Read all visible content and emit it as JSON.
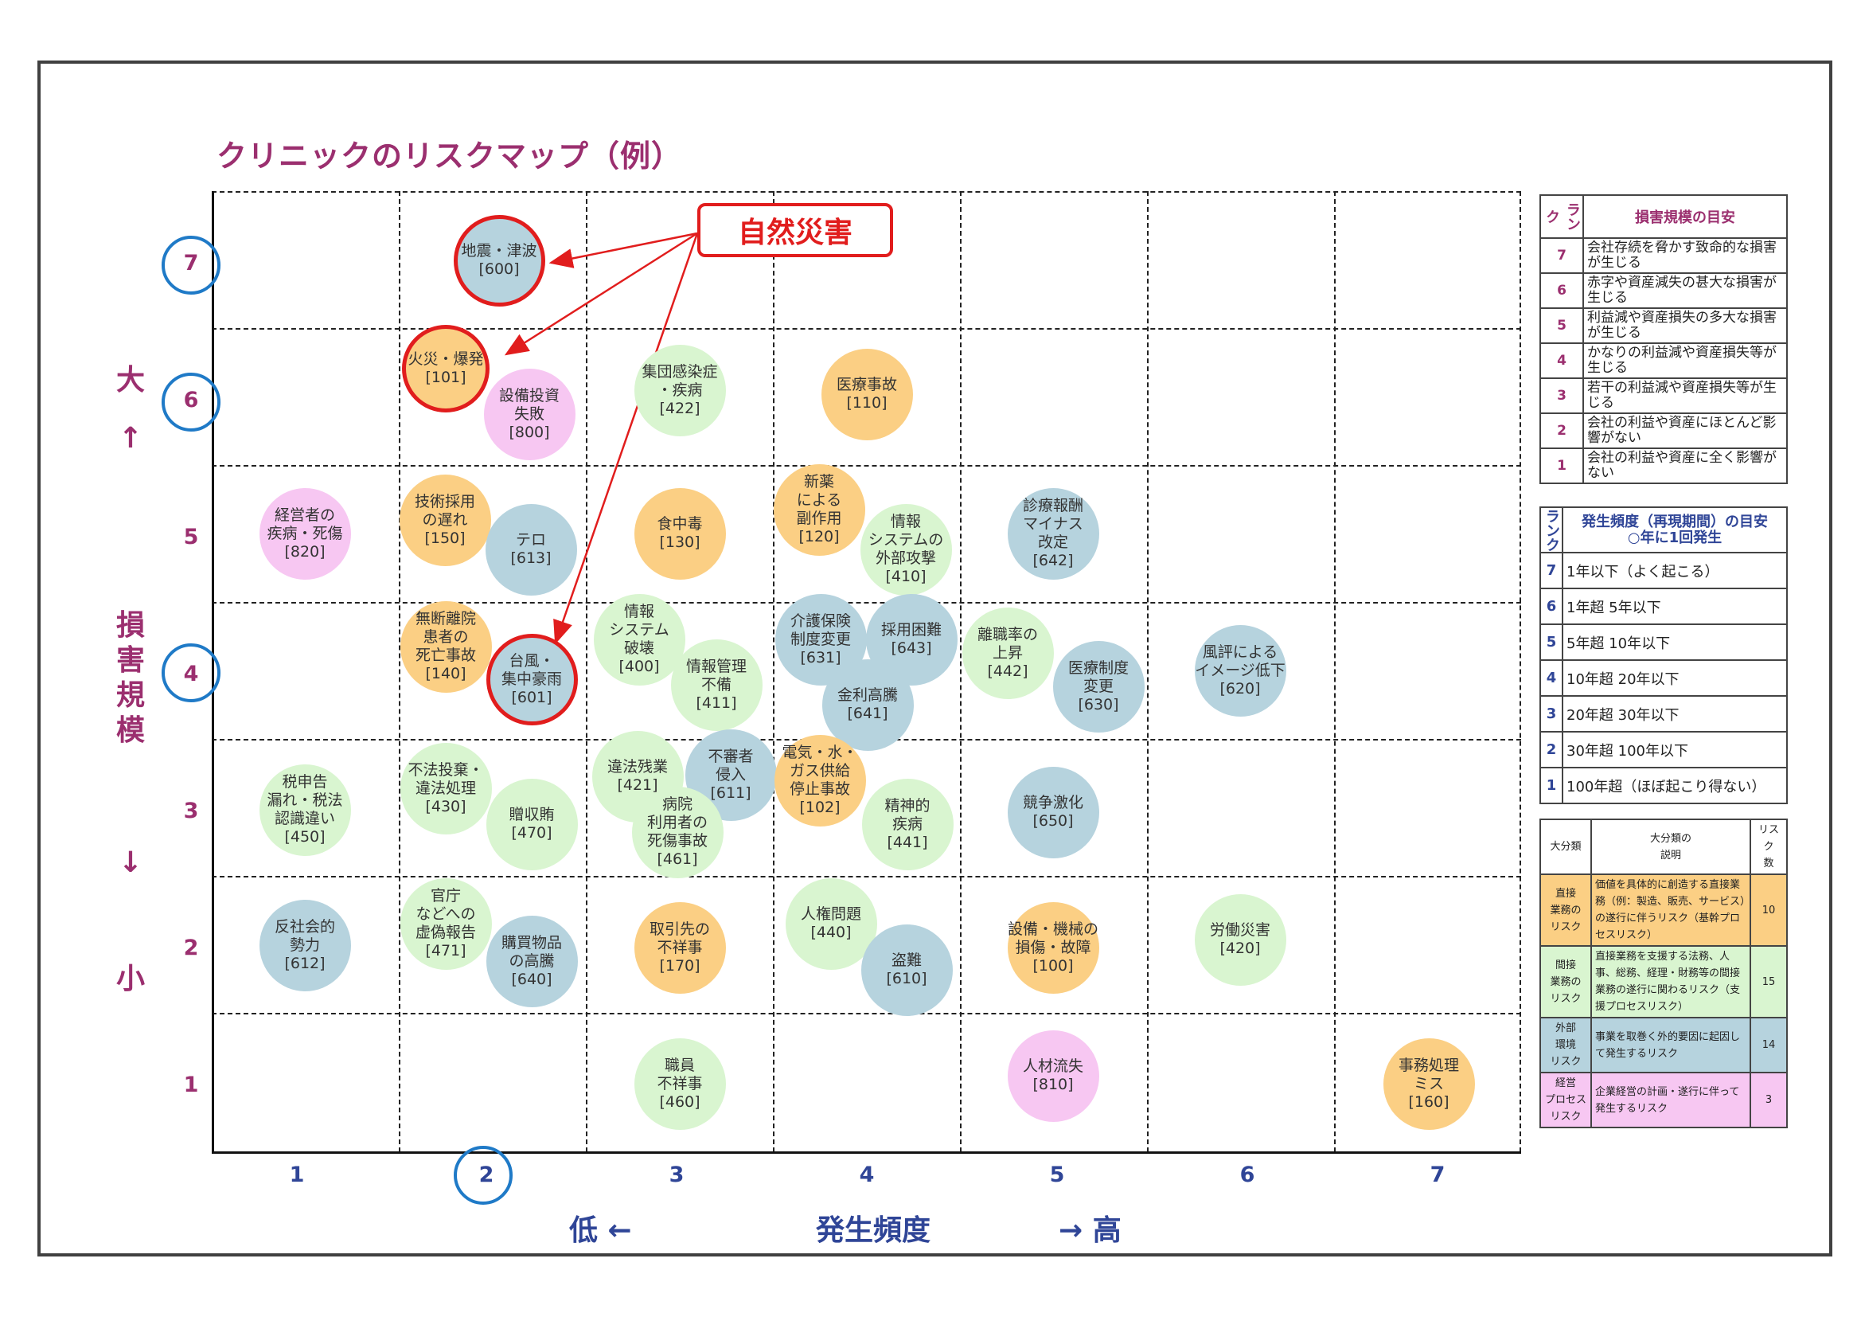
{
  "title": "クリニックのリスクマップ（例）",
  "callout": "自然災害",
  "y_axis": {
    "title_top": "大",
    "up_arrow": "↑",
    "title_chars": [
      "損",
      "害",
      "規",
      "模"
    ],
    "down_arrow": "↓",
    "title_bottom": "小",
    "ticks": [
      "1",
      "2",
      "3",
      "4",
      "5",
      "6",
      "7"
    ],
    "circled_ticks": [
      "7",
      "6",
      "4"
    ]
  },
  "x_axis": {
    "ticks": [
      "1",
      "2",
      "3",
      "4",
      "5",
      "6",
      "7"
    ],
    "circled_ticks": [
      "2"
    ],
    "low": "低 ←",
    "title": "発生頻度",
    "high": "→ 高"
  },
  "colors": {
    "direct": "#fbcf84",
    "indirect": "#d9f5d0",
    "external": "#b6d3de",
    "management": "#f7c7f2",
    "highlight": "#e11d1d",
    "title": "#9b2f6f",
    "axis": "#2f4597"
  },
  "risks": [
    {
      "label": "地震・津波",
      "code": "[600]",
      "frequency": 2,
      "severity": 7,
      "category": "external",
      "highlight": true
    },
    {
      "label": "火災・爆発",
      "code": "[101]",
      "frequency": 2,
      "severity": 6,
      "category": "direct",
      "highlight": true
    },
    {
      "label": "設備投資\n失敗",
      "code": "[800]",
      "frequency": 2,
      "severity": 6,
      "category": "management"
    },
    {
      "label": "集団感染症\n・疾病",
      "code": "[422]",
      "frequency": 3,
      "severity": 6,
      "category": "indirect"
    },
    {
      "label": "医療事故",
      "code": "[110]",
      "frequency": 4,
      "severity": 6,
      "category": "direct"
    },
    {
      "label": "経営者の\n疾病・死傷",
      "code": "[820]",
      "frequency": 1,
      "severity": 5,
      "category": "management"
    },
    {
      "label": "技術採用\nの遅れ",
      "code": "[150]",
      "frequency": 2,
      "severity": 5,
      "category": "direct"
    },
    {
      "label": "テロ",
      "code": "[613]",
      "frequency": 2,
      "severity": 5,
      "category": "external"
    },
    {
      "label": "食中毒",
      "code": "[130]",
      "frequency": 3,
      "severity": 5,
      "category": "direct"
    },
    {
      "label": "新薬\nによる\n副作用",
      "code": "[120]",
      "frequency": 4,
      "severity": 5,
      "category": "direct"
    },
    {
      "label": "情報\nシステムの\n外部攻撃",
      "code": "[410]",
      "frequency": 4,
      "severity": 5,
      "category": "indirect"
    },
    {
      "label": "診療報酬\nマイナス\n改定",
      "code": "[642]",
      "frequency": 5,
      "severity": 5,
      "category": "external"
    },
    {
      "label": "無断離院\n患者の\n死亡事故",
      "code": "[140]",
      "frequency": 2,
      "severity": 4,
      "category": "direct"
    },
    {
      "label": "台風・\n集中豪雨",
      "code": "[601]",
      "frequency": 2,
      "severity": 4,
      "category": "external",
      "highlight": true
    },
    {
      "label": "情報\nシステム\n破壊",
      "code": "[400]",
      "frequency": 3,
      "severity": 4,
      "category": "indirect"
    },
    {
      "label": "情報管理\n不備",
      "code": "[411]",
      "frequency": 3,
      "severity": 4,
      "category": "indirect"
    },
    {
      "label": "介護保険\n制度変更",
      "code": "[631]",
      "frequency": 4,
      "severity": 4,
      "category": "external"
    },
    {
      "label": "採用困難",
      "code": "[643]",
      "frequency": 4,
      "severity": 4,
      "category": "external"
    },
    {
      "label": "金利高騰",
      "code": "[641]",
      "frequency": 4,
      "severity": 4,
      "category": "external"
    },
    {
      "label": "離職率の\n上昇",
      "code": "[442]",
      "frequency": 5,
      "severity": 4,
      "category": "indirect"
    },
    {
      "label": "医療制度\n変更",
      "code": "[630]",
      "frequency": 5,
      "severity": 4,
      "category": "external"
    },
    {
      "label": "風評による\nイメージ低下",
      "code": "[620]",
      "frequency": 6,
      "severity": 4,
      "category": "external"
    },
    {
      "label": "税申告\n漏れ・税法\n認識違い",
      "code": "[450]",
      "frequency": 1,
      "severity": 3,
      "category": "indirect"
    },
    {
      "label": "不法投棄・\n違法処理",
      "code": "[430]",
      "frequency": 2,
      "severity": 3,
      "category": "indirect"
    },
    {
      "label": "贈収賄",
      "code": "[470]",
      "frequency": 2,
      "severity": 3,
      "category": "indirect"
    },
    {
      "label": "違法残業",
      "code": "[421]",
      "frequency": 3,
      "severity": 3,
      "category": "indirect"
    },
    {
      "label": "不審者\n侵入",
      "code": "[611]",
      "frequency": 3,
      "severity": 3,
      "category": "external"
    },
    {
      "label": "病院\n利用者の\n死傷事故",
      "code": "[461]",
      "frequency": 3,
      "severity": 3,
      "category": "indirect"
    },
    {
      "label": "電気・水・\nガス供給\n停止事故",
      "code": "[102]",
      "frequency": 4,
      "severity": 3,
      "category": "direct"
    },
    {
      "label": "精神的\n疾病",
      "code": "[441]",
      "frequency": 4,
      "severity": 3,
      "category": "indirect"
    },
    {
      "label": "競争激化",
      "code": "[650]",
      "frequency": 5,
      "severity": 3,
      "category": "external"
    },
    {
      "label": "反社会的\n勢力",
      "code": "[612]",
      "frequency": 1,
      "severity": 2,
      "category": "external"
    },
    {
      "label": "官庁\nなどへの\n虚偽報告",
      "code": "[471]",
      "frequency": 2,
      "severity": 2,
      "category": "indirect"
    },
    {
      "label": "購買物品\nの高騰",
      "code": "[640]",
      "frequency": 2,
      "severity": 2,
      "category": "external"
    },
    {
      "label": "取引先の\n不祥事",
      "code": "[170]",
      "frequency": 3,
      "severity": 2,
      "category": "direct"
    },
    {
      "label": "人権問題",
      "code": "[440]",
      "frequency": 4,
      "severity": 2,
      "category": "indirect"
    },
    {
      "label": "盗難",
      "code": "[610]",
      "frequency": 4,
      "severity": 2,
      "category": "external"
    },
    {
      "label": "設備・機械の\n損傷・故障",
      "code": "[100]",
      "frequency": 5,
      "severity": 2,
      "category": "direct"
    },
    {
      "label": "労働災害",
      "code": "[420]",
      "frequency": 6,
      "severity": 2,
      "category": "indirect"
    },
    {
      "label": "職員\n不祥事",
      "code": "[460]",
      "frequency": 3,
      "severity": 1,
      "category": "indirect"
    },
    {
      "label": "人材流失",
      "code": "[810]",
      "frequency": 5,
      "severity": 1,
      "category": "management"
    },
    {
      "label": "事務処理\nミス",
      "code": "[160]",
      "frequency": 7,
      "severity": 1,
      "category": "direct"
    }
  ],
  "severity_table": {
    "rank_header": "ランク",
    "header": "損害規模の目安",
    "rows": [
      {
        "rank": "7",
        "text": "会社存続を脅かす致命的な損害が生じる"
      },
      {
        "rank": "6",
        "text": "赤字や資産減失の甚大な損害が生じる"
      },
      {
        "rank": "5",
        "text": "利益減や資産損失の多大な損害が生じる"
      },
      {
        "rank": "4",
        "text": "かなりの利益減や資産損失等が生じる"
      },
      {
        "rank": "3",
        "text": "若干の利益減や資産損失等が生じる"
      },
      {
        "rank": "2",
        "text": "会社の利益や資産にほとんど影響がない"
      },
      {
        "rank": "1",
        "text": "会社の利益や資産に全く影響がない"
      }
    ]
  },
  "frequency_table": {
    "rank_header": "ランク",
    "header_line1": "発生頻度（再現期間）の目安",
    "header_line2": "○年に1回発生",
    "rows": [
      {
        "rank": "7",
        "text": "1年以下（よく起こる）"
      },
      {
        "rank": "6",
        "text": "1年超 5年以下"
      },
      {
        "rank": "5",
        "text": "5年超 10年以下"
      },
      {
        "rank": "4",
        "text": "10年超 20年以下"
      },
      {
        "rank": "3",
        "text": "20年超 30年以下"
      },
      {
        "rank": "2",
        "text": "30年超 100年以下"
      },
      {
        "rank": "1",
        "text": "100年超（ほぼ起こり得ない）"
      }
    ]
  },
  "category_table": {
    "headers": [
      "大分類",
      "大分類の\n説明",
      "リスク\n数"
    ],
    "rows": [
      {
        "name": "直接\n業務の\nリスク",
        "desc": "価値を具体的に創造する直接業務（例：製造、販売、サービス）の遂行に伴うリスク（基幹プロセスリスク）",
        "count": "10",
        "color": "#fbcf84"
      },
      {
        "name": "間接\n業務の\nリスク",
        "desc": "直接業務を支援する法務、人事、総務、経理・財務等の間接業務の遂行に関わるリスク（支援プロセスリスク）",
        "count": "15",
        "color": "#d9f5d0"
      },
      {
        "name": "外部\n環境\nリスク",
        "desc": "事業を取巻く外的要因に起因して発生するリスク",
        "count": "14",
        "color": "#b6d3de"
      },
      {
        "name": "経営\nプロセス\nリスク",
        "desc": "企業経営の計画・遂行に伴って発生するリスク",
        "count": "3",
        "color": "#f7c7f2"
      }
    ]
  }
}
